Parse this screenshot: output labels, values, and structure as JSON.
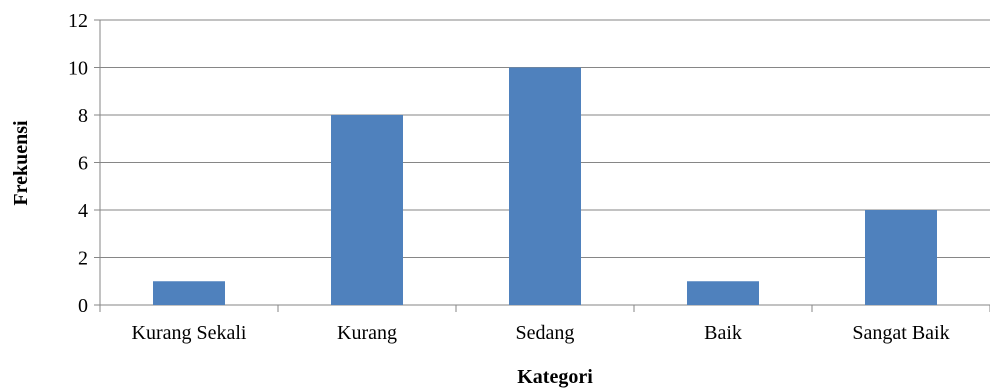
{
  "chart_data": {
    "type": "bar",
    "title": "",
    "xlabel": "Kategori",
    "ylabel": "Frekuensi",
    "categories": [
      "Kurang Sekali",
      "Kurang",
      "Sedang",
      "Baik",
      "Sangat Baik"
    ],
    "values": [
      1,
      8,
      10,
      1,
      4
    ],
    "ylim": [
      0,
      12
    ],
    "yticks": [
      0,
      2,
      4,
      6,
      8,
      10,
      12
    ],
    "grid": true,
    "legend": "none",
    "colors": {
      "bar": "#4F81BD",
      "grid": "#868686",
      "axis": "#868686"
    }
  }
}
